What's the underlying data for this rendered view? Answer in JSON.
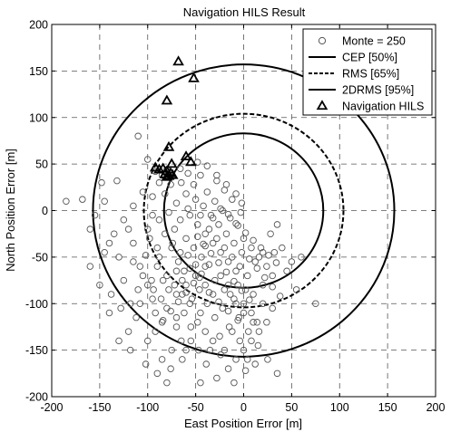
{
  "chart_data": {
    "type": "scatter",
    "title": "Navigation HILS Result",
    "xlabel": "East Position Error [m]",
    "ylabel": "North Position Error [m]",
    "xlim": [
      -200,
      200
    ],
    "ylim": [
      -200,
      200
    ],
    "xticks": [
      -200,
      -150,
      -100,
      -50,
      0,
      50,
      100,
      150,
      200
    ],
    "yticks": [
      -200,
      -150,
      -100,
      -50,
      0,
      50,
      100,
      150,
      200
    ],
    "grid": true,
    "legend_position": "top-right",
    "legend": [
      "Monte = 250",
      "CEP [50%]",
      "RMS [65%]",
      "2DRMS [95%]",
      "Navigation HILS"
    ],
    "circles": [
      {
        "name": "CEP [50%]",
        "center": [
          0,
          0
        ],
        "radius": 83,
        "style": "solid"
      },
      {
        "name": "RMS [65%]",
        "center": [
          0,
          0
        ],
        "radius": 104,
        "style": "dashed"
      },
      {
        "name": "2DRMS [95%]",
        "center": [
          0,
          0
        ],
        "radius": 157,
        "style": "solid"
      }
    ],
    "series": [
      {
        "name": "Monte = 250",
        "marker": "circle",
        "points": [
          [
            -185,
            10
          ],
          [
            -168,
            12
          ],
          [
            -148,
            30
          ],
          [
            -132,
            32
          ],
          [
            -110,
            80
          ],
          [
            -100,
            55
          ],
          [
            -92,
            42
          ],
          [
            -85,
            38
          ],
          [
            -80,
            44
          ],
          [
            -88,
            30
          ],
          [
            -95,
            15
          ],
          [
            -105,
            20
          ],
          [
            -120,
            -20
          ],
          [
            -140,
            -35
          ],
          [
            -160,
            -60
          ],
          [
            -130,
            -50
          ],
          [
            -115,
            -55
          ],
          [
            -102,
            -48
          ],
          [
            -125,
            -75
          ],
          [
            -110,
            -85
          ],
          [
            -95,
            -95
          ],
          [
            -80,
            -105
          ],
          [
            -70,
            -90
          ],
          [
            -60,
            -80
          ],
          [
            -50,
            -70
          ],
          [
            -40,
            -60
          ],
          [
            -30,
            -75
          ],
          [
            -20,
            -85
          ],
          [
            -10,
            -95
          ],
          [
            0,
            -100
          ],
          [
            10,
            -90
          ],
          [
            20,
            -80
          ],
          [
            30,
            -70
          ],
          [
            -45,
            -110
          ],
          [
            -55,
            -125
          ],
          [
            -65,
            -140
          ],
          [
            -75,
            -150
          ],
          [
            -85,
            -160
          ],
          [
            -35,
            -150
          ],
          [
            -25,
            -135
          ],
          [
            -15,
            -125
          ],
          [
            -5,
            -115
          ],
          [
            5,
            -130
          ],
          [
            15,
            -145
          ],
          [
            25,
            -160
          ],
          [
            35,
            -175
          ],
          [
            -45,
            -185
          ],
          [
            -80,
            -185
          ],
          [
            -100,
            -140
          ],
          [
            -112,
            -115
          ],
          [
            -118,
            -100
          ],
          [
            -105,
            -70
          ],
          [
            -98,
            -30
          ],
          [
            -88,
            -10
          ],
          [
            -78,
            -2
          ],
          [
            -70,
            8
          ],
          [
            -60,
            18
          ],
          [
            -52,
            28
          ],
          [
            -45,
            38
          ],
          [
            -38,
            20
          ],
          [
            -30,
            10
          ],
          [
            -22,
            0
          ],
          [
            -14,
            -8
          ],
          [
            -6,
            -16
          ],
          [
            2,
            -24
          ],
          [
            10,
            -32
          ],
          [
            18,
            -40
          ],
          [
            26,
            -48
          ],
          [
            34,
            -56
          ],
          [
            -60,
            -30
          ],
          [
            -52,
            -40
          ],
          [
            -44,
            -50
          ],
          [
            -36,
            -20
          ],
          [
            -28,
            -30
          ],
          [
            -20,
            -40
          ],
          [
            -12,
            -50
          ],
          [
            -4,
            -60
          ],
          [
            4,
            -70
          ],
          [
            12,
            -55
          ],
          [
            20,
            -45
          ],
          [
            -75,
            -40
          ],
          [
            -68,
            -55
          ],
          [
            -62,
            -65
          ],
          [
            -56,
            -5
          ],
          [
            -48,
            -15
          ],
          [
            -40,
            -25
          ],
          [
            -32,
            -35
          ],
          [
            -24,
            -45
          ],
          [
            -16,
            -55
          ],
          [
            -8,
            -65
          ],
          [
            -90,
            -60
          ],
          [
            -84,
            -75
          ],
          [
            -78,
            -85
          ],
          [
            -72,
            -20
          ],
          [
            -66,
            -10
          ],
          [
            -58,
            2
          ],
          [
            -50,
            12
          ],
          [
            -42,
            5
          ],
          [
            -34,
            -5
          ],
          [
            -26,
            -15
          ],
          [
            -18,
            -25
          ],
          [
            -10,
            -35
          ],
          [
            -2,
            -45
          ],
          [
            6,
            -52
          ],
          [
            14,
            -62
          ],
          [
            22,
            -72
          ],
          [
            30,
            -82
          ],
          [
            38,
            -92
          ],
          [
            -65,
            30
          ],
          [
            -58,
            40
          ],
          [
            -48,
            52
          ],
          [
            -38,
            48
          ],
          [
            -28,
            38
          ],
          [
            -18,
            28
          ],
          [
            -8,
            18
          ],
          [
            -2,
            8
          ],
          [
            -85,
            -120
          ],
          [
            -92,
            -130
          ],
          [
            -70,
            -125
          ],
          [
            -62,
            -110
          ],
          [
            -54,
            -95
          ],
          [
            -46,
            -85
          ],
          [
            -38,
            -100
          ],
          [
            -30,
            -115
          ],
          [
            -22,
            -105
          ],
          [
            -14,
            -90
          ],
          [
            -6,
            -80
          ],
          [
            2,
            -85
          ],
          [
            8,
            -110
          ],
          [
            14,
            -120
          ],
          [
            -100,
            -80
          ],
          [
            -108,
            -60
          ],
          [
            -115,
            -35
          ],
          [
            -125,
            -10
          ],
          [
            -135,
            -25
          ],
          [
            -145,
            -45
          ],
          [
            -150,
            -80
          ],
          [
            -138,
            -90
          ],
          [
            -128,
            -105
          ],
          [
            -120,
            -130
          ],
          [
            -95,
            -5
          ],
          [
            -82,
            18
          ],
          [
            -76,
            28
          ],
          [
            -66,
            45
          ],
          [
            -56,
            -62
          ],
          [
            -46,
            -72
          ],
          [
            -36,
            -88
          ],
          [
            -26,
            -98
          ],
          [
            -16,
            -108
          ],
          [
            -6,
            -118
          ],
          [
            40,
            -40
          ],
          [
            45,
            -65
          ],
          [
            50,
            -55
          ],
          [
            55,
            -85
          ],
          [
            60,
            -50
          ],
          [
            28,
            -25
          ],
          [
            35,
            -15
          ],
          [
            -3,
            -2
          ],
          [
            -12,
            12
          ],
          [
            -20,
            22
          ],
          [
            -28,
            32
          ],
          [
            -36,
            -58
          ],
          [
            -44,
            -68
          ],
          [
            -52,
            -78
          ],
          [
            -60,
            -88
          ],
          [
            -68,
            -98
          ],
          [
            -76,
            -108
          ],
          [
            -84,
            -118
          ],
          [
            -92,
            -110
          ],
          [
            -40,
            -130
          ],
          [
            -32,
            -140
          ],
          [
            -24,
            -155
          ],
          [
            -16,
            -170
          ],
          [
            -8,
            -160
          ],
          [
            0,
            -150
          ],
          [
            8,
            -140
          ],
          [
            16,
            -130
          ],
          [
            24,
            -120
          ],
          [
            -70,
            -65
          ],
          [
            -64,
            -75
          ],
          [
            -58,
            -48
          ],
          [
            -50,
            -58
          ],
          [
            -42,
            -36
          ],
          [
            -34,
            -46
          ],
          [
            -26,
            -56
          ],
          [
            -18,
            -66
          ],
          [
            -10,
            -76
          ],
          [
            -2,
            -86
          ],
          [
            6,
            -96
          ],
          [
            75,
            -100
          ],
          [
            -108,
            -100
          ],
          [
            -96,
            -75
          ],
          [
            -88,
            -50
          ],
          [
            -82,
            -25
          ],
          [
            -74,
            -35
          ],
          [
            -66,
            -45
          ],
          [
            -48,
            -28
          ],
          [
            -40,
            -38
          ],
          [
            -32,
            -8
          ],
          [
            -24,
            2
          ],
          [
            -16,
            -4
          ],
          [
            -8,
            -14
          ],
          [
            0,
            -30
          ],
          [
            8,
            -40
          ],
          [
            16,
            -50
          ],
          [
            24,
            -60
          ],
          [
            32,
            -45
          ],
          [
            -55,
            -140
          ],
          [
            -47,
            -150
          ],
          [
            -39,
            -165
          ],
          [
            -140,
            -110
          ],
          [
            -130,
            -140
          ],
          [
            -118,
            -150
          ],
          [
            -102,
            -165
          ],
          [
            -90,
            -175
          ],
          [
            -76,
            -170
          ],
          [
            -64,
            -160
          ],
          [
            -28,
            -180
          ],
          [
            -10,
            -185
          ],
          [
            2,
            -172
          ],
          [
            -160,
            -20
          ],
          [
            -155,
            -5
          ],
          [
            -145,
            10
          ],
          [
            -115,
            5
          ],
          [
            -100,
            -20
          ],
          [
            -90,
            -40
          ],
          [
            -80,
            -70
          ],
          [
            -72,
            -80
          ],
          [
            -64,
            -90
          ],
          [
            -56,
            -100
          ],
          [
            -48,
            -120
          ],
          [
            -40,
            -80
          ],
          [
            -32,
            -90
          ],
          [
            -24,
            -70
          ],
          [
            -16,
            -80
          ],
          [
            -8,
            -100
          ],
          [
            0,
            -110
          ],
          [
            10,
            -120
          ],
          [
            20,
            -100
          ],
          [
            30,
            -105
          ],
          [
            -12,
            -130
          ],
          [
            -4,
            -140
          ],
          [
            4,
            -160
          ],
          [
            12,
            -165
          ],
          [
            -20,
            -150
          ],
          [
            -60,
            -150
          ],
          [
            -70,
            -115
          ],
          [
            -86,
            -95
          ],
          [
            -94,
            -85
          ],
          [
            -45,
            -5
          ]
        ]
      },
      {
        "name": "Navigation HILS",
        "marker": "triangle",
        "points": [
          [
            -68,
            160
          ],
          [
            -52,
            142
          ],
          [
            -80,
            118
          ],
          [
            -78,
            68
          ],
          [
            -60,
            58
          ],
          [
            -55,
            52
          ],
          [
            -75,
            50
          ],
          [
            -92,
            46
          ],
          [
            -84,
            45
          ],
          [
            -88,
            44
          ],
          [
            -80,
            42
          ],
          [
            -76,
            40
          ],
          [
            -82,
            39
          ],
          [
            -78,
            37
          ],
          [
            -74,
            38
          ],
          [
            -80,
            36
          ]
        ]
      }
    ]
  }
}
